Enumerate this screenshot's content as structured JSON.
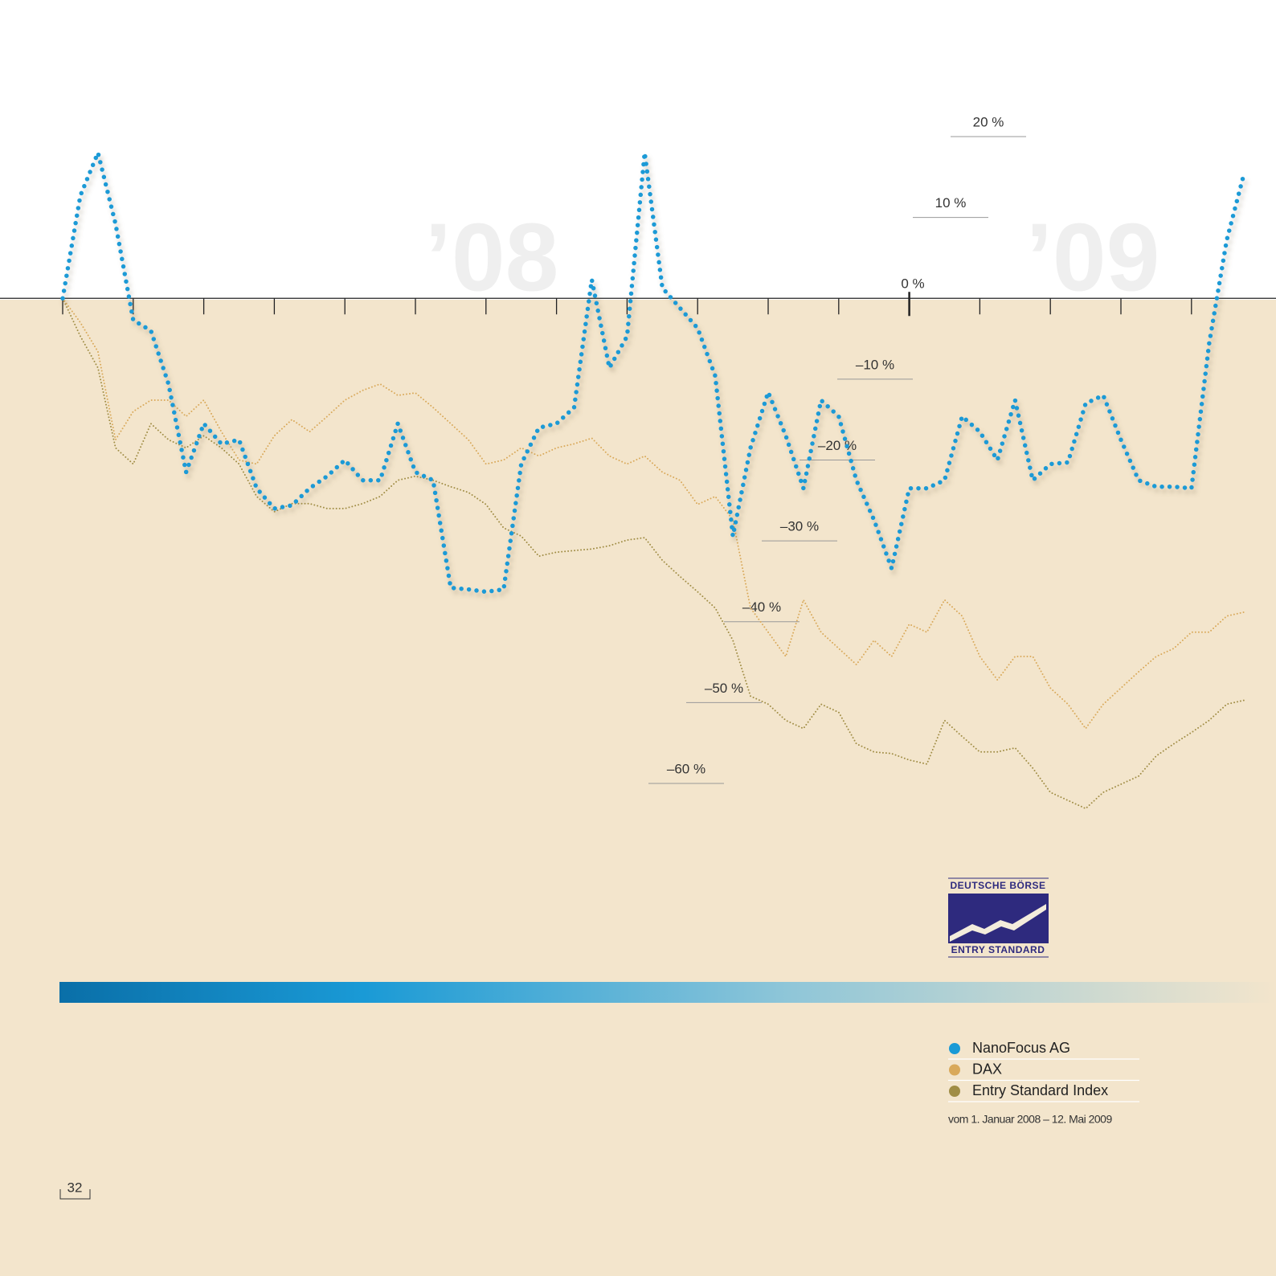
{
  "chart_data": {
    "type": "line",
    "annotations": [
      "’08",
      "’09"
    ],
    "note": "vom 1. Januar 2008 – 12. Mai 2009",
    "x": [
      0,
      0.25,
      0.5,
      0.75,
      1,
      1.25,
      1.5,
      1.75,
      2,
      2.25,
      2.5,
      2.75,
      3,
      3.25,
      3.5,
      3.75,
      4,
      4.25,
      4.5,
      4.75,
      5,
      5.25,
      5.5,
      5.75,
      6,
      6.25,
      6.5,
      6.75,
      7,
      7.25,
      7.5,
      7.75,
      8,
      8.25,
      8.5,
      8.75,
      9,
      9.25,
      9.5,
      9.75,
      10,
      10.25,
      10.5,
      10.75,
      11,
      11.25,
      11.5,
      11.75,
      12,
      12.25,
      12.5,
      12.75,
      13,
      13.25,
      13.5,
      13.75,
      14,
      14.25,
      14.5,
      14.75,
      15,
      15.25,
      15.5,
      15.75,
      16,
      16.25,
      16.5,
      16.75
    ],
    "series": [
      {
        "name": "NanoFocus AG",
        "color": "#1a9ad6",
        "style": "dots",
        "values": [
          0,
          12.7,
          18,
          9.2,
          -2.7,
          -4,
          -10.6,
          -21.5,
          -15.5,
          -18,
          -17.5,
          -23.5,
          -26,
          -25.6,
          -23.5,
          -22,
          -20,
          -22.5,
          -22.5,
          -15.5,
          -21.5,
          -22.5,
          -35.8,
          -36,
          -36.3,
          -36,
          -20.5,
          -16,
          -15.5,
          -13.5,
          2.3,
          -8.6,
          -4.7,
          18,
          1.3,
          -1.2,
          -3.7,
          -9.6,
          -29.4,
          -18.5,
          -11.6,
          -17,
          -23.5,
          -12.6,
          -14.6,
          -22.5,
          -27.4,
          -33.4,
          -23.5,
          -23.5,
          -22.5,
          -14.6,
          -16.5,
          -20,
          -12.6,
          -22.5,
          -20.5,
          -20.3,
          -13,
          -12,
          -17.5,
          -22.5,
          -23.3,
          -23.3,
          -23.5,
          -5.6,
          7.2,
          15.6
        ]
      },
      {
        "name": "DAX",
        "color": "#d9a95a",
        "style": "dotted",
        "values": [
          0,
          -3,
          -6.6,
          -17.5,
          -14,
          -12.6,
          -12.6,
          -14.6,
          -12.6,
          -16.5,
          -20,
          -20.5,
          -17,
          -15,
          -16.5,
          -14.6,
          -12.6,
          -11.4,
          -10.6,
          -12,
          -11.7,
          -13.5,
          -15.5,
          -17.5,
          -20.5,
          -20,
          -18.5,
          -19.5,
          -18.5,
          -18,
          -17.3,
          -19.5,
          -20.5,
          -19.5,
          -21.5,
          -22.5,
          -25.5,
          -24.5,
          -27.4,
          -38.3,
          -41.3,
          -44.3,
          -37.3,
          -41.3,
          -43.3,
          -45.3,
          -42.3,
          -44.3,
          -40.3,
          -41.3,
          -37.3,
          -39.3,
          -44.3,
          -47.2,
          -44.3,
          -44.3,
          -48.2,
          -50.2,
          -53.2,
          -50.2,
          -48.2,
          -46.2,
          -44.3,
          -43.3,
          -41.3,
          -41.3,
          -39.3,
          -38.8
        ]
      },
      {
        "name": "Entry Standard Index",
        "color": "#a08d45",
        "style": "dotted",
        "values": [
          0,
          -4.7,
          -8.6,
          -18.5,
          -20.5,
          -15.5,
          -17.5,
          -18.5,
          -17,
          -18.5,
          -20.5,
          -24.5,
          -26.4,
          -25.4,
          -25.4,
          -26,
          -26,
          -25.4,
          -24.5,
          -22.5,
          -22,
          -22.5,
          -23.3,
          -24,
          -25.5,
          -28.4,
          -29.4,
          -31.9,
          -31.4,
          -31.2,
          -31,
          -30.6,
          -29.9,
          -29.6,
          -32.4,
          -34.4,
          -36.3,
          -38.3,
          -42.3,
          -49.2,
          -50.2,
          -52.2,
          -53.2,
          -50.2,
          -51.2,
          -55.1,
          -56.1,
          -56.3,
          -57.1,
          -57.6,
          -52.2,
          -54.2,
          -56.1,
          -56.1,
          -55.6,
          -58.1,
          -61.1,
          -62.1,
          -63.1,
          -61.1,
          -60.1,
          -59.1,
          -56.6,
          -55.1,
          -53.7,
          -52.2,
          -50.2,
          -49.7
        ]
      }
    ],
    "xlim": [
      0,
      17
    ],
    "xticks": [
      0,
      1,
      2,
      3,
      4,
      5,
      6,
      7,
      8,
      9,
      10,
      11,
      12,
      13,
      14,
      15,
      16
    ],
    "ylim": [
      -60,
      20
    ],
    "yticks": [
      {
        "value": 20,
        "label": "20 %"
      },
      {
        "value": 10,
        "label": "10 %"
      },
      {
        "value": 0,
        "label": "0 %"
      },
      {
        "value": -10,
        "label": "–10 %"
      },
      {
        "value": -20,
        "label": "–20 %"
      },
      {
        "value": -30,
        "label": "–30 %"
      },
      {
        "value": -40,
        "label": "–40 %"
      },
      {
        "value": -50,
        "label": "–50 %"
      },
      {
        "value": -60,
        "label": "–60 %"
      }
    ],
    "legend": "bottom-right"
  },
  "logo": {
    "top": "DEUTSCHE BÖRSE",
    "bottom": "ENTRY STANDARD"
  },
  "page_number": "32"
}
